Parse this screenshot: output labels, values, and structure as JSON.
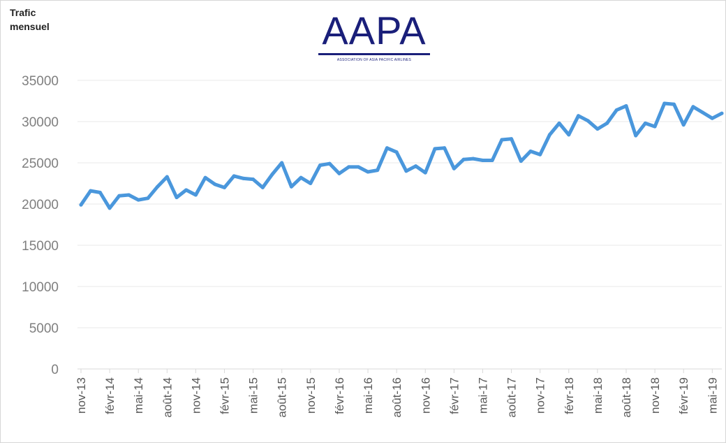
{
  "chart_data": {
    "type": "line",
    "ylabel": "Trafic mensuel",
    "ylabel_lines": [
      "Trafic",
      "mensuel"
    ],
    "ylim": [
      0,
      35000
    ],
    "ytick_values": [
      0,
      5000,
      10000,
      15000,
      20000,
      25000,
      30000,
      35000
    ],
    "ytick_labels": [
      "0",
      "5000",
      "10000",
      "15000",
      "20000",
      "25000",
      "30000",
      "35000"
    ],
    "grid": true,
    "x_labels": [
      "nov-13",
      "févr-14",
      "mai-14",
      "août-14",
      "nov-14",
      "févr-15",
      "mai-15",
      "août-15",
      "nov-15",
      "févr-16",
      "mai-16",
      "août-16",
      "nov-16",
      "févr-17",
      "mai-17",
      "août-17",
      "nov-17",
      "févr-18",
      "mai-18",
      "août-18",
      "nov-18",
      "févr-19",
      "mai-19"
    ],
    "x_label_every": 3,
    "series": [
      {
        "color": "#4a97dc",
        "values": [
          19900,
          21600,
          21400,
          19500,
          21000,
          21100,
          20500,
          20700,
          22100,
          23300,
          20800,
          21700,
          21100,
          23200,
          22400,
          22000,
          23400,
          23100,
          23000,
          22000,
          23600,
          25000,
          22100,
          23200,
          22500,
          24700,
          24900,
          23700,
          24500,
          24500,
          23900,
          24100,
          26800,
          26300,
          24000,
          24600,
          23800,
          26700,
          26800,
          24300,
          25400,
          25500,
          25300,
          25300,
          27800,
          27900,
          25200,
          26400,
          26000,
          28400,
          29800,
          28400,
          30700,
          30100,
          29100,
          29800,
          31400,
          31900,
          28300,
          29800,
          29400,
          32200,
          32100,
          29600,
          31800,
          31100,
          30400,
          31000
        ]
      }
    ]
  },
  "logo": {
    "text": "AAPA",
    "subtitle": "ASSOCIATION OF ASIA PACIFIC AIRLINES",
    "color": "#1a1f7a"
  }
}
